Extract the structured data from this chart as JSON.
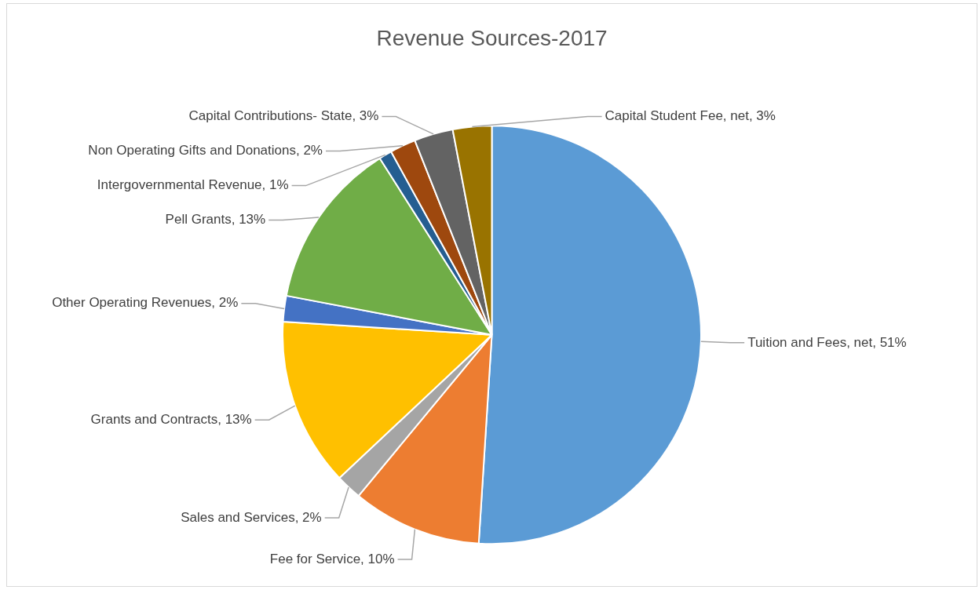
{
  "chart_data": {
    "type": "pie",
    "title": "Revenue Sources-2017",
    "categories": [
      "Tuition and Fees, net",
      "Fee for Service",
      "Sales and Services",
      "Grants and Contracts",
      "Other Operating Revenues",
      "Pell Grants",
      "Intergovernmental Revenue",
      "Non Operating Gifts and Donations",
      "Capital Contributions- State",
      "Capital Student Fee, net"
    ],
    "values": [
      51,
      10,
      2,
      13,
      2,
      13,
      1,
      2,
      3,
      3
    ],
    "value_labels": [
      "51%",
      "10%",
      "2%",
      "13%",
      "2%",
      "13%",
      "1%",
      "2%",
      "3%",
      "3%"
    ],
    "colors": [
      "#5b9bd5",
      "#ed7d31",
      "#a5a5a5",
      "#ffc000",
      "#4472c4",
      "#70ad47",
      "#255e91",
      "#9e480e",
      "#636363",
      "#997300"
    ],
    "legend": false
  }
}
